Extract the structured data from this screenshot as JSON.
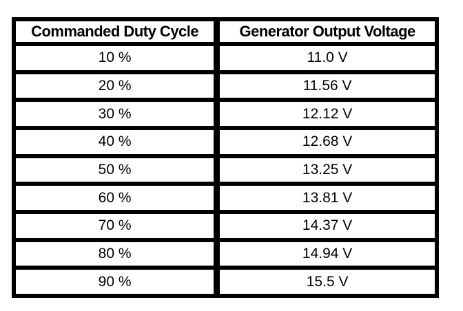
{
  "colors": {
    "border": "#000000",
    "text": "#000000",
    "background": "#ffffff"
  },
  "table": {
    "columns": [
      "Commanded Duty Cycle",
      "Generator Output Voltage"
    ],
    "rows": [
      {
        "duty_cycle": "10 %",
        "voltage": "11.0 V"
      },
      {
        "duty_cycle": "20 %",
        "voltage": "11.56 V"
      },
      {
        "duty_cycle": "30 %",
        "voltage": "12.12 V"
      },
      {
        "duty_cycle": "40 %",
        "voltage": "12.68 V"
      },
      {
        "duty_cycle": "50 %",
        "voltage": "13.25 V"
      },
      {
        "duty_cycle": "60 %",
        "voltage": "13.81 V"
      },
      {
        "duty_cycle": "70 %",
        "voltage": "14.37 V"
      },
      {
        "duty_cycle": "80 %",
        "voltage": "14.94 V"
      },
      {
        "duty_cycle": "90 %",
        "voltage": "15.5 V"
      }
    ]
  },
  "chart_data": {
    "type": "table",
    "title": "",
    "columns": [
      "Commanded Duty Cycle",
      "Generator Output Voltage"
    ],
    "rows": [
      [
        "10 %",
        "11.0 V"
      ],
      [
        "20 %",
        "11.56 V"
      ],
      [
        "30 %",
        "12.12 V"
      ],
      [
        "40 %",
        "12.68 V"
      ],
      [
        "50 %",
        "13.25 V"
      ],
      [
        "60 %",
        "13.81 V"
      ],
      [
        "70 %",
        "14.37 V"
      ],
      [
        "80 %",
        "14.94 V"
      ],
      [
        "90 %",
        "15.5 V"
      ]
    ],
    "duty_cycle_percent": [
      10,
      20,
      30,
      40,
      50,
      60,
      70,
      80,
      90
    ],
    "output_voltage_v": [
      11.0,
      11.56,
      12.12,
      12.68,
      13.25,
      13.81,
      14.37,
      14.94,
      15.5
    ]
  }
}
